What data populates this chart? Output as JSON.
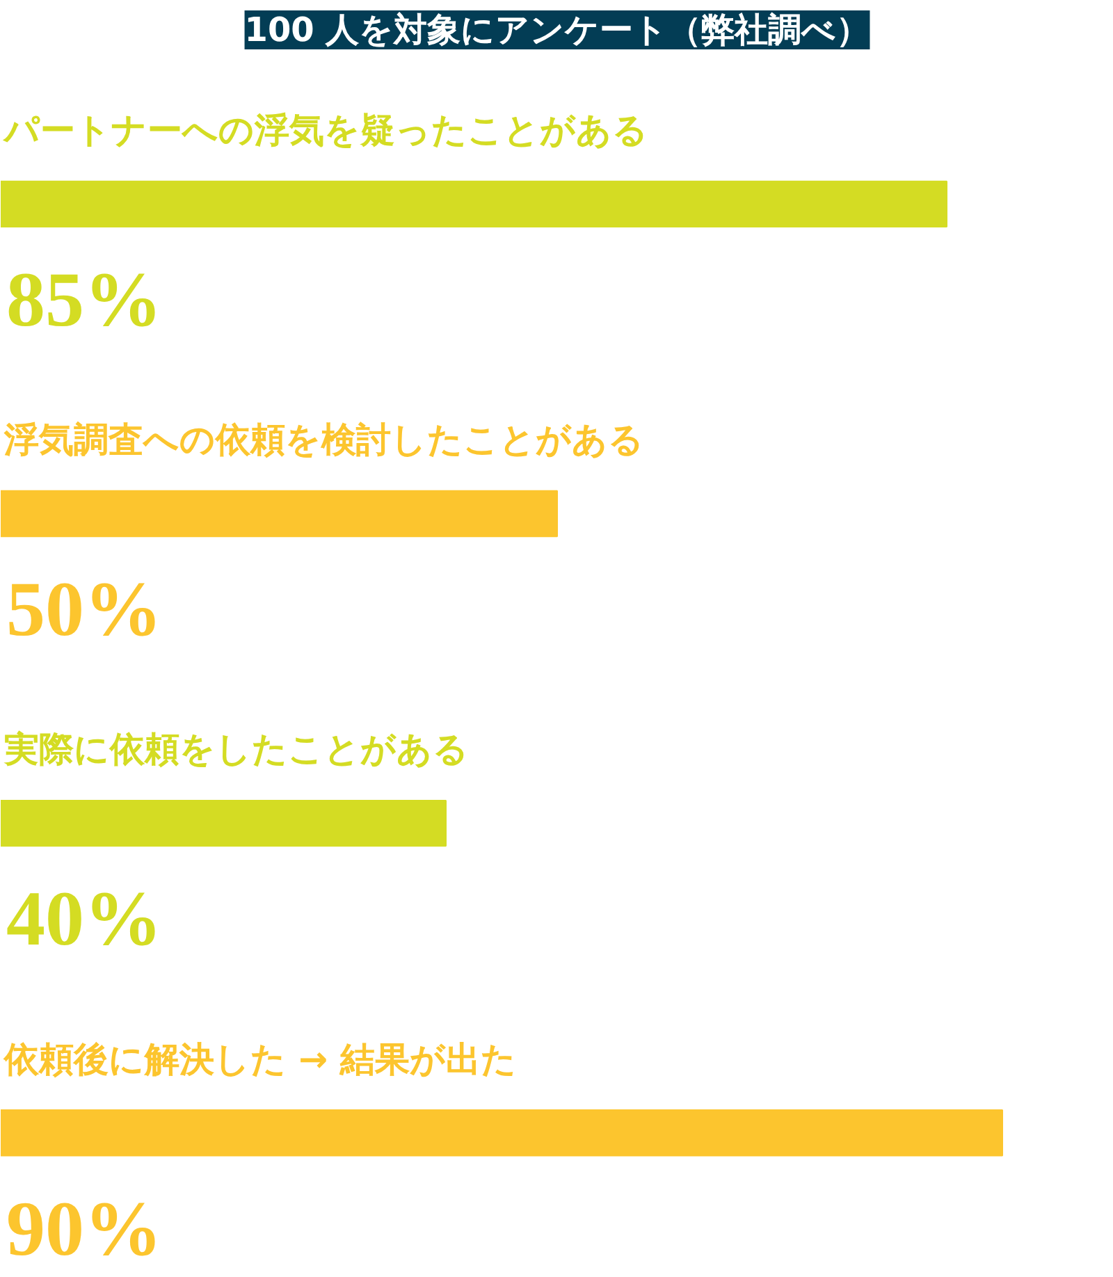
{
  "chart_data": {
    "type": "bar",
    "orientation": "horizontal",
    "title": "100 人を対象にアンケート（弊社調べ）",
    "categories": [
      "パートナーへの浮気を疑ったことがある",
      "浮気調査への依頼を検討したことがある",
      "実際に依頼をしたことがある",
      "依頼後に解決した → 結果が出た"
    ],
    "values": [
      85,
      50,
      40,
      90
    ],
    "colors": [
      "#d4dc23",
      "#fcc52e",
      "#d4dc23",
      "#fcc52e"
    ],
    "value_labels": [
      "85%",
      "50%",
      "40%",
      "90%"
    ]
  }
}
